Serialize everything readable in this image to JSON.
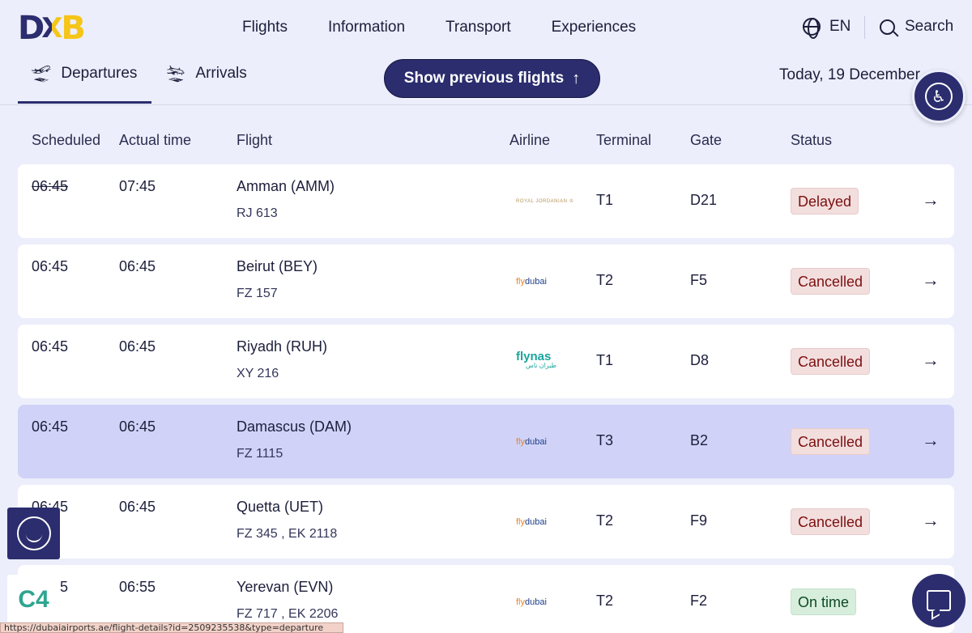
{
  "logo": {
    "d": "D",
    "x": "X",
    "b": "B"
  },
  "nav": [
    "Flights",
    "Information",
    "Transport",
    "Experiences"
  ],
  "lang": "EN",
  "search_label": "Search",
  "tabs": {
    "departures": "Departures",
    "arrivals": "Arrivals"
  },
  "show_previous_label": "Show previous flights",
  "date_label": "Today, 19 December",
  "columns": {
    "scheduled": "Scheduled",
    "actual": "Actual time",
    "flight": "Flight",
    "airline": "Airline",
    "terminal": "Terminal",
    "gate": "Gate",
    "status": "Status"
  },
  "rows": [
    {
      "scheduled": "06:45",
      "actual": "07:45",
      "destination": "Amman (AMM)",
      "flight_no": "RJ 613",
      "airline_logo": "ROYAL JORDANIAN ♔",
      "terminal": "T1",
      "gate": "D21",
      "status": "Delayed"
    },
    {
      "scheduled": "06:45",
      "actual": "06:45",
      "destination": "Beirut (BEY)",
      "flight_no": "FZ 157",
      "airline_logo": "dubai",
      "terminal": "T2",
      "gate": "F5",
      "status": "Cancelled"
    },
    {
      "scheduled": "06:45",
      "actual": "06:45",
      "destination": "Riyadh (RUH)",
      "flight_no": "XY 216",
      "airline_logo": "flynas",
      "terminal": "T1",
      "gate": "D8",
      "status": "Cancelled"
    },
    {
      "scheduled": "06:45",
      "actual": "06:45",
      "destination": "Damascus (DAM)",
      "flight_no": "FZ 1115",
      "airline_logo": "dubai",
      "terminal": "T3",
      "gate": "B2",
      "status": "Cancelled"
    },
    {
      "scheduled": "06:45",
      "actual": "06:45",
      "destination": "Quetta (UET)",
      "flight_no": "FZ 345 , EK 2118",
      "airline_logo": "dubai",
      "terminal": "T2",
      "gate": "F9",
      "status": "Cancelled"
    },
    {
      "scheduled": "06:55",
      "actual": "06:55",
      "destination": "Yerevan (EVN)",
      "flight_no": "FZ 717 , EK 2206",
      "airline_logo": "dubai",
      "terminal": "T2",
      "gate": "F2",
      "status": "On time"
    }
  ],
  "flynas_arabic": "طيران ناس",
  "fly_prefix": "fly",
  "brand_badge": "C4",
  "status_url": "https://dubaiairports.ae/flight-details?id=2509235538&type=departure",
  "colors": {
    "primary": "#2b2d6e",
    "accent": "#f5c518",
    "delayed_bg": "#f3dede",
    "ontime_bg": "#d8eedd",
    "highlight_row": "#d0d3f7"
  }
}
